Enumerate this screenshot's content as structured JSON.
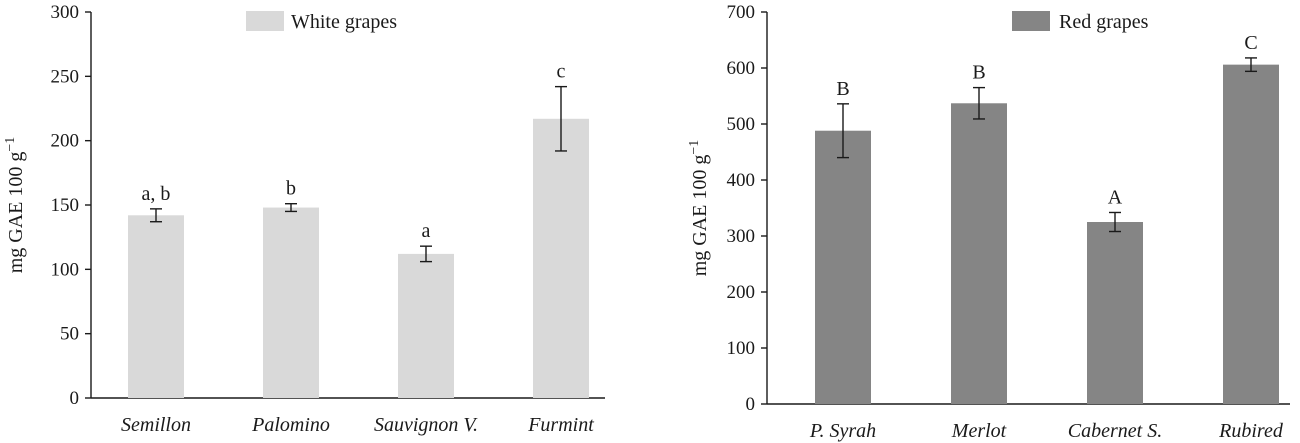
{
  "chart_data": [
    {
      "type": "bar",
      "legend": "White grapes",
      "legend_position": "top-center",
      "ylabel": "mg GAE 100 g⁻¹",
      "ylabel_main": "mg GAE 100 g",
      "ylabel_sup": "−1",
      "xlabel": "",
      "ylim": [
        0,
        300
      ],
      "yticks": [
        "0",
        "50",
        "100",
        "150",
        "200",
        "250",
        "300"
      ],
      "color": "#d9d9d9",
      "categories": [
        "Semillon",
        "Palomino",
        "Sauvignon V.",
        "Furmint"
      ],
      "values": [
        142,
        148,
        112,
        217
      ],
      "errors": [
        5,
        3,
        6,
        25
      ],
      "letters": [
        "a, b",
        "b",
        "a",
        "c"
      ]
    },
    {
      "type": "bar",
      "legend": "Red grapes",
      "legend_position": "top-center",
      "ylabel": "mg GAE 100 g⁻¹",
      "ylabel_main": "mg GAE 100 g",
      "ylabel_sup": "−1",
      "xlabel": "",
      "ylim": [
        0,
        700
      ],
      "yticks": [
        "0",
        "100",
        "200",
        "300",
        "400",
        "500",
        "600",
        "700"
      ],
      "color": "#858585",
      "categories": [
        "P. Syrah",
        "Merlot",
        "Cabernet S.",
        "Rubired"
      ],
      "values": [
        488,
        537,
        325,
        606
      ],
      "errors": [
        48,
        28,
        17,
        12
      ],
      "letters": [
        "B",
        "B",
        "A",
        "C"
      ]
    }
  ]
}
